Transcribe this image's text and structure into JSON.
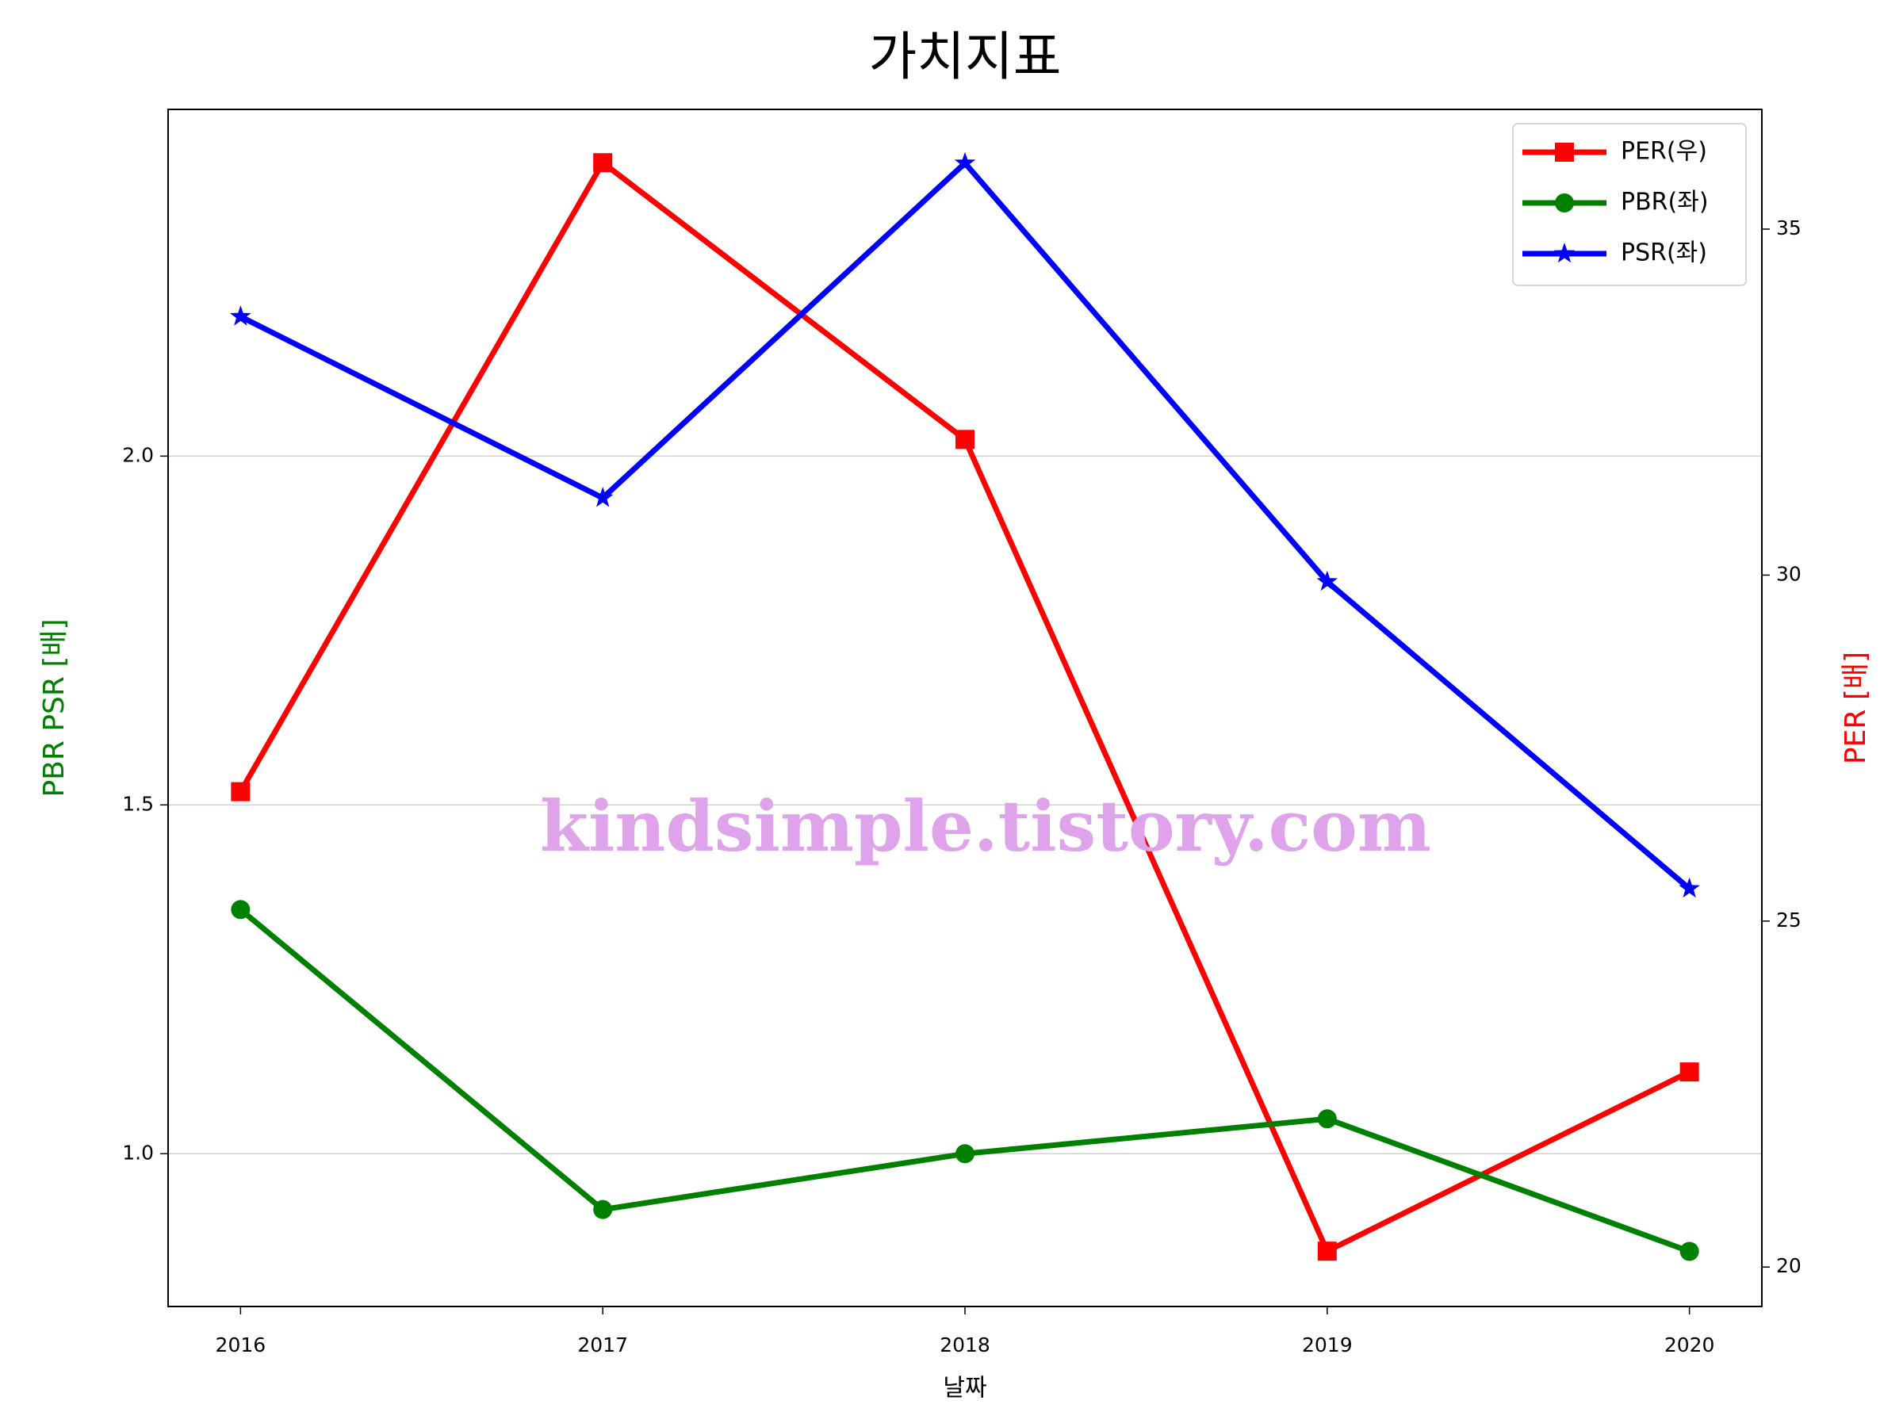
{
  "chart_data": {
    "type": "line",
    "title": "가치지표",
    "xlabel": "날짜",
    "ylabel": "PBR PSR [배]",
    "y2label": "PER [배]",
    "ylabel_color": "green",
    "y2label_color": "red",
    "annotation": "kindsimple.tistory.com",
    "x": [
      2016,
      2017,
      2018,
      2019,
      2020
    ],
    "xlim": [
      2015.8,
      2020.2
    ],
    "xticks": [
      2016,
      2017,
      2018,
      2019,
      2020
    ],
    "ylim": [
      0.781,
      2.497
    ],
    "yticks": [
      {
        "value": 1,
        "label": "1.0"
      },
      {
        "value": 1.5,
        "label": "1.5"
      },
      {
        "value": 2,
        "label": "2.0"
      }
    ],
    "y2lim": [
      19.43,
      36.73
    ],
    "y2ticks": [
      20,
      25,
      30,
      35
    ],
    "grid": true,
    "legend": "upper right",
    "series": [
      {
        "name": "PER(우)",
        "color": "red",
        "marker": "square",
        "axis": "y2",
        "values": [
          26.87,
          35.96,
          31.96,
          20.23,
          22.82
        ]
      },
      {
        "name": "PBR(좌)",
        "color": "green",
        "marker": "circle",
        "values": [
          1.35,
          0.92,
          1.0,
          1.05,
          0.86
        ]
      },
      {
        "name": "PSR(좌)",
        "color": "blue",
        "marker": "star",
        "values": [
          2.2,
          1.94,
          2.42,
          1.82,
          1.38
        ]
      }
    ]
  }
}
